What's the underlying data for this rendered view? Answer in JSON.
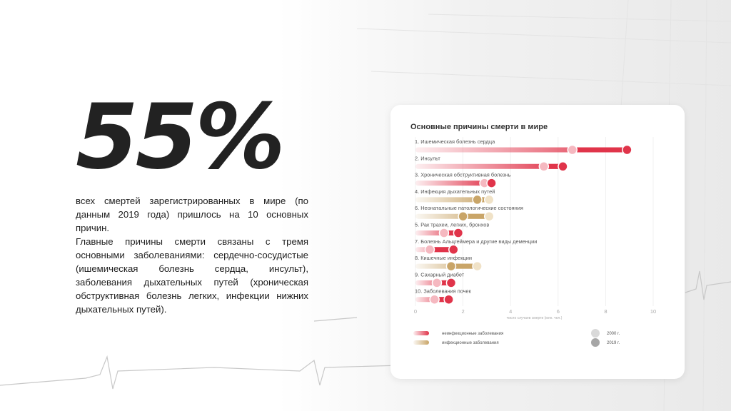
{
  "headline": {
    "value": "55%",
    "paragraph1": "всех смертей зарегистрированных в мире (по данным 2019 года) пришлось на 10 основных причин.",
    "paragraph2": "Главные причины смерти связаны с тремя основными заболеваниями: сердечно-сосудистые (ишемическая болезнь сердца, инсульт), заболевания дыхательных путей (хроническая обструктивная болезнь легких, инфекции нижних дыхательных путей)."
  },
  "colors": {
    "noncommunicable": "#e0344a",
    "communicable": "#c9a568",
    "marker_2000": "#f5b8c0",
    "marker_2019": "#e0344a",
    "legend_2000": "#d9d9d9",
    "legend_2019": "#a6a6a6"
  },
  "chart_data": {
    "type": "dumbbell",
    "title": "Основные причины смерти в мире",
    "xlabel": "число случаев смерти (млн. чел.)",
    "xlim": [
      0,
      10
    ],
    "xticks": [
      "0",
      "2",
      "4",
      "6",
      "8",
      "10"
    ],
    "categories": [
      {
        "label": "1. Ишемическая болезнь сердца",
        "group": "noncommunicable",
        "y2000": 6.6,
        "y2019": 8.9
      },
      {
        "label": "2. Инсульт",
        "group": "noncommunicable",
        "y2000": 5.4,
        "y2019": 6.2
      },
      {
        "label": "3. Хроническая обструктивная болезнь",
        "group": "noncommunicable",
        "y2000": 2.9,
        "y2019": 3.2
      },
      {
        "label": "4. Инфекция дыхательных путей",
        "group": "communicable",
        "y2000": 3.1,
        "y2019": 2.6
      },
      {
        "label": "6. Неонатальные патологические состояния",
        "group": "communicable",
        "y2000": 3.1,
        "y2019": 2.0
      },
      {
        "label": "5. Рак трахеи, легких, бронхов",
        "group": "noncommunicable",
        "y2000": 1.2,
        "y2019": 1.8
      },
      {
        "label": "7. Болезнь Альцгеймера и другие виды деменции",
        "group": "noncommunicable",
        "y2000": 0.6,
        "y2019": 1.6
      },
      {
        "label": "8. Кишечные инфекции",
        "group": "communicable",
        "y2000": 2.6,
        "y2019": 1.5
      },
      {
        "label": "9. Сахарный диабет",
        "group": "noncommunicable",
        "y2000": 0.9,
        "y2019": 1.5
      },
      {
        "label": "10. Заболевания почек",
        "group": "noncommunicable",
        "y2000": 0.8,
        "y2019": 1.4
      }
    ],
    "legend": {
      "groups": [
        {
          "key": "noncommunicable",
          "label": "неинфекционные заболевания"
        },
        {
          "key": "communicable",
          "label": "инфекционные заболевания"
        }
      ],
      "years": [
        {
          "key": "2000",
          "label": "2000 г."
        },
        {
          "key": "2019",
          "label": "2019 г."
        }
      ]
    }
  }
}
